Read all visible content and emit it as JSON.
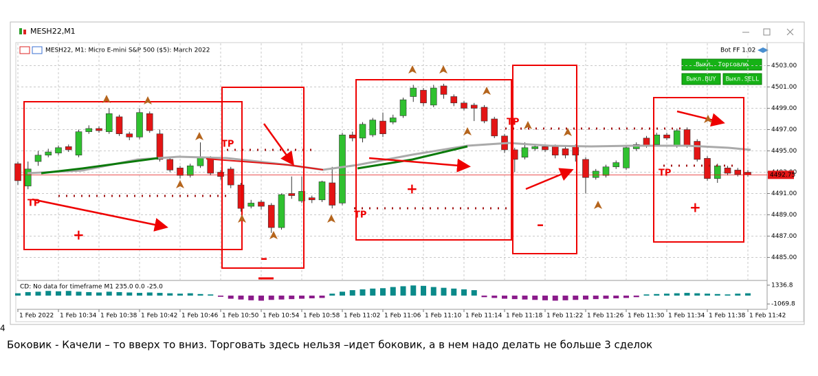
{
  "window": {
    "title": "MESH22,M1"
  },
  "page_marker": "4",
  "caption": "Боковик - Качели – то вверх то вниз. Торговать здесь нельзя –идет боковик, а в нем надо делать не больше 3 сделок",
  "overlay": {
    "bot_label": "Bot FF 1.02",
    "buttons": [
      "Выкл. Торговлю",
      "Выкл.BUY",
      "Выкл.SELL"
    ],
    "annotations": [
      "TP",
      "TP",
      "TP",
      "TP",
      "TP",
      "+",
      "–",
      "+",
      "–",
      "+"
    ]
  },
  "chart_data": [
    {
      "type": "candlestick",
      "title": "MESH22, M1: Micro E-mini S&P 500 ($5): March 2022",
      "categories": [
        "1 Feb 2022",
        null,
        null,
        null,
        "1 Feb 10:34",
        null,
        null,
        null,
        "1 Feb 10:38",
        null,
        null,
        null,
        "1 Feb 10:42",
        null,
        null,
        null,
        "1 Feb 10:46",
        null,
        null,
        null,
        "1 Feb 10:50",
        null,
        null,
        null,
        "1 Feb 10:54",
        null,
        null,
        null,
        "1 Feb 10:58",
        null,
        null,
        null,
        "1 Feb 11:02",
        null,
        null,
        null,
        "1 Feb 11:06",
        null,
        null,
        null,
        "1 Feb 11:10",
        null,
        null,
        null,
        "1 Feb 11:14",
        null,
        null,
        null,
        "1 Feb 11:18",
        null,
        null,
        null,
        "1 Feb 11:22",
        null,
        null,
        null,
        "1 Feb 11:26",
        null,
        null,
        null,
        "1 Feb 11:30",
        null,
        null,
        null,
        "1 Feb 11:34",
        null,
        null,
        null,
        "1 Feb 11:38",
        null,
        null,
        null,
        "1 Feb 11:42"
      ],
      "open": [
        4493.8,
        4491.7,
        4494.0,
        4494.6,
        4494.8,
        4495.4,
        4494.6,
        4496.8,
        4497.1,
        4496.8,
        4498.2,
        4496.6,
        4496.3,
        4498.5,
        4496.6,
        4494.2,
        4493.4,
        4492.7,
        4493.6,
        4494.3,
        4493.0,
        4493.3,
        4491.8,
        4489.8,
        4490.2,
        4489.9,
        4487.8,
        4491.0,
        4490.3,
        4490.6,
        4490.4,
        4492.0,
        4490.1,
        4496.5,
        4496.2,
        4496.5,
        4497.8,
        4497.7,
        4498.3,
        4500.1,
        4500.7,
        4499.3,
        4501.1,
        4500.1,
        4499.5,
        4499.3,
        4499.1,
        4498.0,
        4496.4,
        4495.1,
        4494.4,
        4495.2,
        4495.4,
        4495.4,
        4495.2,
        4495.4,
        4494.2,
        4492.5,
        4492.7,
        4493.5,
        4493.4,
        4495.2,
        4496.2,
        4495.6,
        4496.5,
        4495.5,
        4497.0,
        4495.9,
        4494.3,
        4492.4,
        4493.4,
        4493.2,
        4493.0
      ],
      "high": [
        4494.0,
        4494.0,
        4495.0,
        4495.2,
        4495.5,
        4495.6,
        4497.0,
        4497.4,
        4497.3,
        4499.0,
        4498.4,
        4496.8,
        4499.0,
        4498.7,
        4497.0,
        4494.4,
        4493.6,
        4493.8,
        4495.8,
        4494.5,
        4493.2,
        4493.5,
        4492.0,
        4490.4,
        4490.4,
        4490.1,
        4491.0,
        4492.6,
        4492.6,
        4490.8,
        4492.2,
        4493.5,
        4496.7,
        4496.8,
        4497.7,
        4498.1,
        4498.6,
        4498.4,
        4500.0,
        4501.2,
        4500.9,
        4501.2,
        4501.3,
        4500.3,
        4499.7,
        4499.5,
        4499.3,
        4498.2,
        4496.6,
        4495.3,
        4495.8,
        4495.6,
        4495.6,
        4495.6,
        4495.4,
        4495.6,
        4494.4,
        4493.3,
        4493.7,
        4494.1,
        4495.5,
        4495.8,
        4496.4,
        4496.7,
        4496.7,
        4497.1,
        4497.2,
        4496.1,
        4494.5,
        4493.8,
        4493.6,
        4493.4,
        4493.2
      ],
      "low": [
        4491.8,
        4491.4,
        4493.6,
        4494.4,
        4494.6,
        4494.9,
        4494.4,
        4496.6,
        4496.7,
        4496.6,
        4496.4,
        4496.0,
        4496.1,
        4496.7,
        4494.0,
        4493.0,
        4492.4,
        4492.5,
        4493.4,
        4492.7,
        4492.3,
        4491.5,
        4489.3,
        4489.6,
        4489.5,
        4487.3,
        4487.6,
        4490.5,
        4490.1,
        4490.1,
        4490.2,
        4489.6,
        4489.9,
        4495.9,
        4495.8,
        4496.3,
        4496.3,
        4497.5,
        4498.1,
        4499.6,
        4499.2,
        4499.1,
        4499.9,
        4499.2,
        4498.8,
        4497.8,
        4497.6,
        4496.2,
        4494.8,
        4493.0,
        4494.2,
        4495.0,
        4494.9,
        4494.3,
        4494.3,
        4494.0,
        4491.0,
        4492.3,
        4492.5,
        4493.3,
        4493.2,
        4495.0,
        4495.3,
        4495.4,
        4496.0,
        4495.3,
        4495.3,
        4494.0,
        4492.2,
        4492.0,
        4492.7,
        4492.6,
        4492.6
      ],
      "close": [
        4492.2,
        4493.3,
        4494.6,
        4494.9,
        4495.3,
        4495.1,
        4496.8,
        4497.1,
        4496.9,
        4498.5,
        4496.6,
        4496.3,
        4498.6,
        4496.9,
        4494.2,
        4493.2,
        4492.7,
        4493.6,
        4494.4,
        4492.9,
        4492.6,
        4491.8,
        4489.6,
        4490.1,
        4489.8,
        4487.8,
        4490.9,
        4490.8,
        4491.2,
        4490.4,
        4492.1,
        4489.9,
        4496.5,
        4496.2,
        4497.5,
        4497.9,
        4496.6,
        4498.1,
        4499.8,
        4500.9,
        4499.5,
        4500.9,
        4500.3,
        4499.5,
        4499.0,
        4499.0,
        4497.8,
        4496.4,
        4495.1,
        4494.2,
        4495.3,
        4495.4,
        4495.1,
        4494.6,
        4494.6,
        4494.6,
        4492.5,
        4493.1,
        4493.5,
        4493.9,
        4495.3,
        4495.6,
        4495.5,
        4496.5,
        4496.2,
        4496.9,
        4495.5,
        4494.2,
        4492.4,
        4493.6,
        4492.9,
        4492.8,
        4492.75
      ],
      "up_color": "#2fc12f",
      "down_color": "#e31515",
      "ylim": [
        4482.9,
        4505.1
      ],
      "yticks": [
        {
          "value": 4485,
          "label": "4485.00"
        },
        {
          "value": 4487,
          "label": "4487.00"
        },
        {
          "value": 4489,
          "label": "4489.00"
        },
        {
          "value": 4491,
          "label": "4491.00"
        },
        {
          "value": 4493,
          "label": "4493.00"
        },
        {
          "value": 4495,
          "label": "4495.00"
        },
        {
          "value": 4497,
          "label": "4497.00"
        },
        {
          "value": 4499,
          "label": "4499.00"
        },
        {
          "value": 4501,
          "label": "4501.00"
        },
        {
          "value": 4503,
          "label": "4503.00"
        }
      ],
      "last_price": 4492.75,
      "last_price_color": "#e31515",
      "grid": true
    },
    {
      "type": "bar",
      "title": "CD: No data for timeframe M1 235.0 0.0 -25.0",
      "values": [
        300,
        450,
        500,
        600,
        550,
        600,
        500,
        450,
        400,
        500,
        450,
        400,
        350,
        400,
        350,
        300,
        250,
        300,
        200,
        150,
        -150,
        -400,
        -500,
        -600,
        -650,
        -550,
        -500,
        -450,
        -400,
        -350,
        -300,
        250,
        500,
        700,
        800,
        900,
        950,
        1100,
        1200,
        1300,
        1250,
        1100,
        1000,
        900,
        800,
        700,
        -200,
        -300,
        -400,
        -450,
        -500,
        -550,
        -600,
        -650,
        -600,
        -550,
        -500,
        -450,
        -400,
        -350,
        -300,
        -200,
        150,
        200,
        250,
        300,
        350,
        300,
        250,
        200,
        150,
        250,
        300
      ],
      "positive_color": "#0a8a8a",
      "negative_color": "#8a1a8a",
      "ylim": [
        -1670,
        1765
      ],
      "yticks": [
        -1069.8,
        1336.8
      ]
    }
  ]
}
